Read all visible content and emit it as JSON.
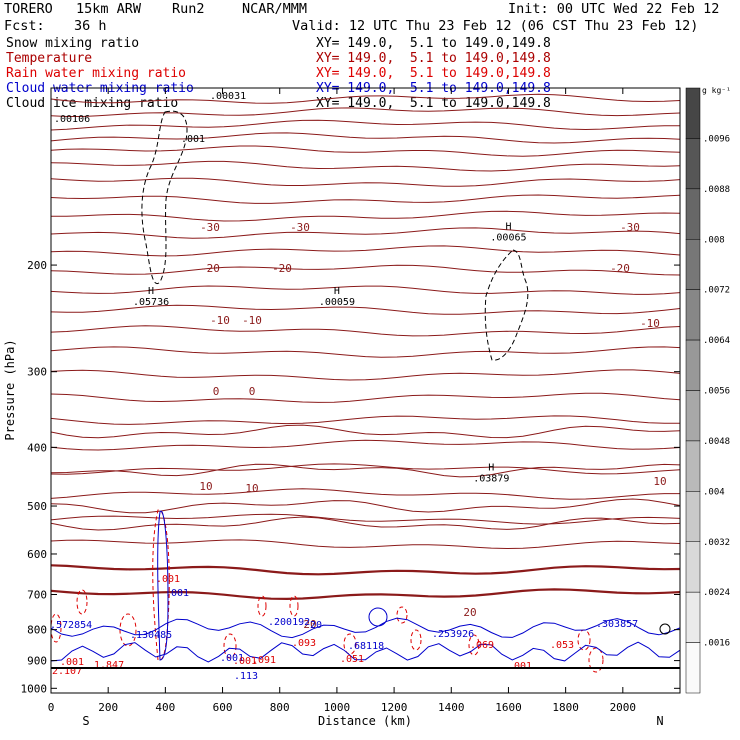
{
  "header": {
    "model": "TORERO",
    "resolution": "15km ARW",
    "run": "Run2",
    "center": "NCAR/MMM",
    "init": "Init: 00 UTC Wed 22 Feb 12",
    "fcst_label": "Fcst:",
    "fcst_value": "36 h",
    "valid": "Valid: 12 UTC Thu 23 Feb 12 (06 CST Thu 23 Feb 12)"
  },
  "legend": [
    {
      "name": "Snow mixing ratio",
      "xy": "XY= 149.0,  5.1 to 149.0,149.8",
      "color": "#000000"
    },
    {
      "name": "Temperature",
      "xy": "XY= 149.0,  5.1 to 149.0,149.8",
      "color": "#aa0000"
    },
    {
      "name": "Rain water mixing ratio",
      "xy": "XY= 149.0,  5.1 to 149.0,149.8",
      "color": "#dd0000"
    },
    {
      "name": "Cloud water mixing ratio",
      "xy": "XY= 149.0,  5.1 to 149.0,149.8",
      "color": "#0000cc"
    },
    {
      "name": "Cloud ice mixing ratio",
      "xy": "XY= 149.0,  5.1 to 149.0,149.8",
      "color": "#000000"
    }
  ],
  "chart_data": {
    "type": "line",
    "xlabel": "Distance (km)",
    "ylabel": "Pressure (hPa)",
    "xlim": [
      0,
      2200
    ],
    "ylim_hpa": [
      1020,
      100
    ],
    "y_scale": "log",
    "x_ticks": [
      "0",
      "200",
      "400",
      "600",
      "800",
      "1000",
      "1200",
      "1400",
      "1600",
      "1800",
      "2000"
    ],
    "y_ticks": [
      "200",
      "300",
      "400",
      "500",
      "600",
      "700",
      "800",
      "900",
      "1000"
    ],
    "left_end_label": "S",
    "right_end_label": "N",
    "temperature_labels": [
      "-30",
      "-30",
      "-30",
      "-20",
      "-20",
      "-20",
      "-10",
      "-10",
      "-10",
      "0",
      "0",
      "10",
      "10",
      "10",
      "20",
      "20"
    ],
    "snow_maxima": [
      {
        "label": ".05736",
        "distance_km": 350,
        "pressure_hpa": 230
      },
      {
        "label": ".03879",
        "distance_km": 1540,
        "pressure_hpa": 450
      },
      {
        "label": ".00059",
        "distance_km": 1000,
        "pressure_hpa": 230
      },
      {
        "label": ".00065",
        "distance_km": 1600,
        "pressure_hpa": 180
      }
    ],
    "snow_labels": [
      ".001",
      ".00106",
      ".00031"
    ],
    "rain_labels": [
      ".001",
      ".001",
      ".001",
      ".091",
      ".093",
      ".051",
      ".069",
      ".053",
      ".001",
      "1.847",
      "2.107"
    ],
    "cloud_labels": [
      ".001",
      ".001",
      ".130485",
      ".572854",
      ".200192",
      ".68118",
      ".253926",
      ".303857",
      ".113",
      "20"
    ],
    "colorbar": {
      "unit": "g kg⁻¹",
      "ticks": [
        ".0096",
        ".0088",
        ".008",
        ".0072",
        ".0064",
        ".0056",
        ".0048",
        ".004",
        ".0032",
        ".0024",
        ".0016"
      ]
    }
  }
}
